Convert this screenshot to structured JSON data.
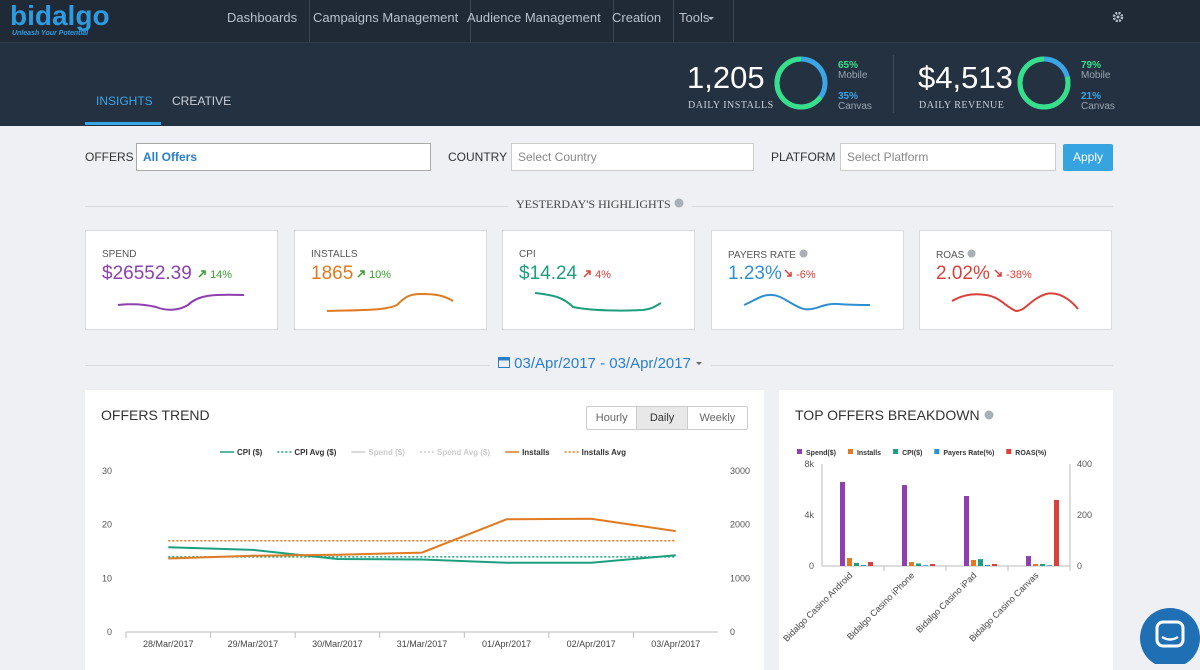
{
  "nav": {
    "logo": "bidalgo",
    "tagline": "Unleash Your Potential",
    "items": [
      "Dashboards",
      "Campaigns Management",
      "Audience Management",
      "Creation",
      "Tools"
    ]
  },
  "tabs": [
    "INSIGHTS",
    "CREATIVE"
  ],
  "kpis": [
    {
      "value": "1,205",
      "label": "DAILY INSTALLS",
      "split": [
        {
          "pct": "65%",
          "name": "Mobile"
        },
        {
          "pct": "35%",
          "name": "Canvas"
        }
      ]
    },
    {
      "value": "$4,513",
      "label": "DAILY REVENUE",
      "split": [
        {
          "pct": "79%",
          "name": "Mobile"
        },
        {
          "pct": "21%",
          "name": "Canvas"
        }
      ]
    }
  ],
  "filters": {
    "offers_label": "OFFERS",
    "offers_value": "All Offers",
    "country_label": "COUNTRY",
    "country_placeholder": "Select Country",
    "platform_label": "PLATFORM",
    "platform_placeholder": "Select Platform",
    "apply": "Apply"
  },
  "highlights": {
    "title": "YESTERDAY'S HIGHLIGHTS",
    "cards": [
      {
        "label": "SPEND",
        "value": "$26552.39",
        "change": "14%"
      },
      {
        "label": "INSTALLS",
        "value": "1865",
        "change": "10%"
      },
      {
        "label": "CPI",
        "value": "$14.24",
        "change": "4%"
      },
      {
        "label": "PAYERS RATE",
        "value": "1.23%",
        "change": "-6%"
      },
      {
        "label": "ROAS",
        "value": "2.02%",
        "change": "-38%"
      }
    ]
  },
  "date_range": "03/Apr/2017 - 03/Apr/2017",
  "offers_trend": {
    "title": "OFFERS TREND",
    "toggles": [
      "Hourly",
      "Daily",
      "Weekly"
    ],
    "chart_data": {
      "type": "line",
      "categories": [
        "28/Mar/2017",
        "29/Mar/2017",
        "30/Mar/2017",
        "31/Mar/2017",
        "01/Apr/2017",
        "02/Apr/2017",
        "03/Apr/2017"
      ],
      "series": [
        {
          "name": "CPI ($)",
          "color": "#1e9e7e",
          "values": [
            15.8,
            15.3,
            13.6,
            13.5,
            12.9,
            12.9,
            14.3
          ]
        },
        {
          "name": "CPI Avg ($)",
          "color": "#1e9e7e",
          "dashed": true,
          "values": [
            14,
            14,
            14,
            14,
            14,
            14,
            14
          ]
        },
        {
          "name": "Spend ($)",
          "color": "#cccccc",
          "hidden": true
        },
        {
          "name": "Spend Avg ($)",
          "color": "#cccccc",
          "dashed": true,
          "hidden": true
        },
        {
          "name": "Installs",
          "color": "#e07b22",
          "axis": "y2",
          "values": [
            1370,
            1420,
            1440,
            1480,
            2100,
            2110,
            1880
          ]
        },
        {
          "name": "Installs Avg",
          "color": "#e07b22",
          "dashed": true,
          "axis": "y2",
          "values": [
            1700,
            1700,
            1700,
            1700,
            1700,
            1700,
            1700
          ]
        }
      ],
      "ylim": [
        0,
        30
      ],
      "yticks": [
        0,
        10,
        20,
        30
      ],
      "y2lim": [
        0,
        3000
      ],
      "y2ticks": [
        0,
        1000,
        2000,
        3000
      ]
    }
  },
  "breakdown": {
    "title": "TOP OFFERS BREAKDOWN",
    "chart_data": {
      "type": "bar",
      "categories": [
        "Bidalgo Casino Android",
        "Bidalgo Casino iPhone",
        "Bidalgo Casino iPad",
        "Bidalgo Casino Canvas"
      ],
      "series": [
        {
          "name": "Spend($)",
          "color": "#8e3fb0",
          "values": [
            6590,
            6350,
            5490,
            780
          ]
        },
        {
          "name": "Installs",
          "color": "#e07b22",
          "values": [
            630,
            310,
            470,
            160
          ]
        },
        {
          "name": "CPI($)",
          "color": "#1e9e7e",
          "axis": "y2",
          "values": [
            12,
            10,
            27,
            8
          ]
        },
        {
          "name": "Payers Rate(%)",
          "color": "#2f8fd0",
          "axis": "y2",
          "values": [
            4,
            3,
            4,
            3
          ]
        },
        {
          "name": "ROAS(%)",
          "color": "#d9413a",
          "axis": "y2",
          "values": [
            16,
            8,
            8,
            259
          ]
        }
      ],
      "ylim": [
        0,
        8000
      ],
      "yticks": [
        0,
        {
          "value": 4000,
          "label": "4k"
        },
        {
          "value": 8000,
          "label": "8k"
        }
      ],
      "y2lim": [
        0,
        400
      ],
      "y2ticks": [
        0,
        200,
        400
      ]
    }
  }
}
